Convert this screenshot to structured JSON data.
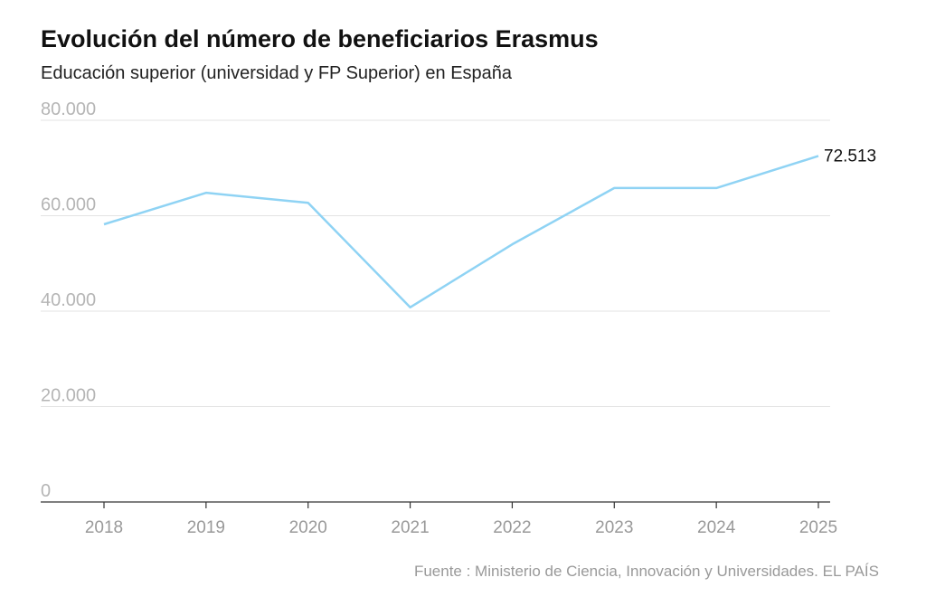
{
  "chart_data": {
    "type": "line",
    "title": "Evolución del número de beneficiarios Erasmus",
    "subtitle": "Educación superior (universidad y FP Superior) en España",
    "source": "Fuente : Ministerio de Ciencia, Innovación y Universidades. EL PAÍS",
    "categories": [
      "2018",
      "2019",
      "2020",
      "2021",
      "2022",
      "2023",
      "2024",
      "2025"
    ],
    "values": [
      58200,
      64800,
      62700,
      40800,
      54000,
      65800,
      65800,
      72513
    ],
    "value_labels": [
      null,
      null,
      null,
      null,
      null,
      null,
      null,
      "72.513"
    ],
    "color": "#8fd3f4",
    "ylim": [
      0,
      80000
    ],
    "yticks": [
      0,
      {
        "value": 20000,
        "label": "20.000"
      },
      {
        "value": 40000,
        "label": "40.000"
      },
      {
        "value": 60000,
        "label": "60.000"
      },
      {
        "value": 80000,
        "label": "80.000"
      }
    ],
    "grid": true
  }
}
